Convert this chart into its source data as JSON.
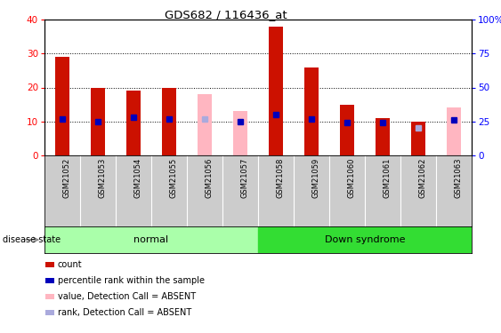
{
  "title": "GDS682 / 116436_at",
  "samples": [
    "GSM21052",
    "GSM21053",
    "GSM21054",
    "GSM21055",
    "GSM21056",
    "GSM21057",
    "GSM21058",
    "GSM21059",
    "GSM21060",
    "GSM21061",
    "GSM21062",
    "GSM21063"
  ],
  "bar_values": [
    29,
    20,
    19,
    20,
    null,
    null,
    38,
    26,
    15,
    11,
    10,
    null
  ],
  "bar_absent_values": [
    null,
    null,
    null,
    null,
    18,
    13,
    null,
    null,
    null,
    null,
    null,
    14
  ],
  "blue_dots": [
    27,
    25,
    28,
    27,
    null,
    25,
    30,
    27,
    24,
    24,
    null,
    26
  ],
  "blue_absent_dots": [
    null,
    null,
    null,
    null,
    27,
    null,
    null,
    null,
    null,
    null,
    20,
    null
  ],
  "ylim_left": [
    0,
    40
  ],
  "ylim_right": [
    0,
    100
  ],
  "yticks_left": [
    0,
    10,
    20,
    30,
    40
  ],
  "yticks_right": [
    0,
    25,
    50,
    75,
    100
  ],
  "bar_color": "#CC1100",
  "bar_absent_color": "#FFB6C1",
  "dot_color": "#0000BB",
  "dot_absent_color": "#AAAADD",
  "normal_bg": "#AAFFAA",
  "down_bg": "#33DD33",
  "sample_bg": "#CCCCCC",
  "legend_items": [
    "count",
    "percentile rank within the sample",
    "value, Detection Call = ABSENT",
    "rank, Detection Call = ABSENT"
  ],
  "legend_colors": [
    "#CC1100",
    "#0000BB",
    "#FFB6C1",
    "#AAAADD"
  ],
  "disease_state_label": "disease state",
  "normal_label": "normal",
  "down_label": "Down syndrome",
  "bar_width": 0.4
}
